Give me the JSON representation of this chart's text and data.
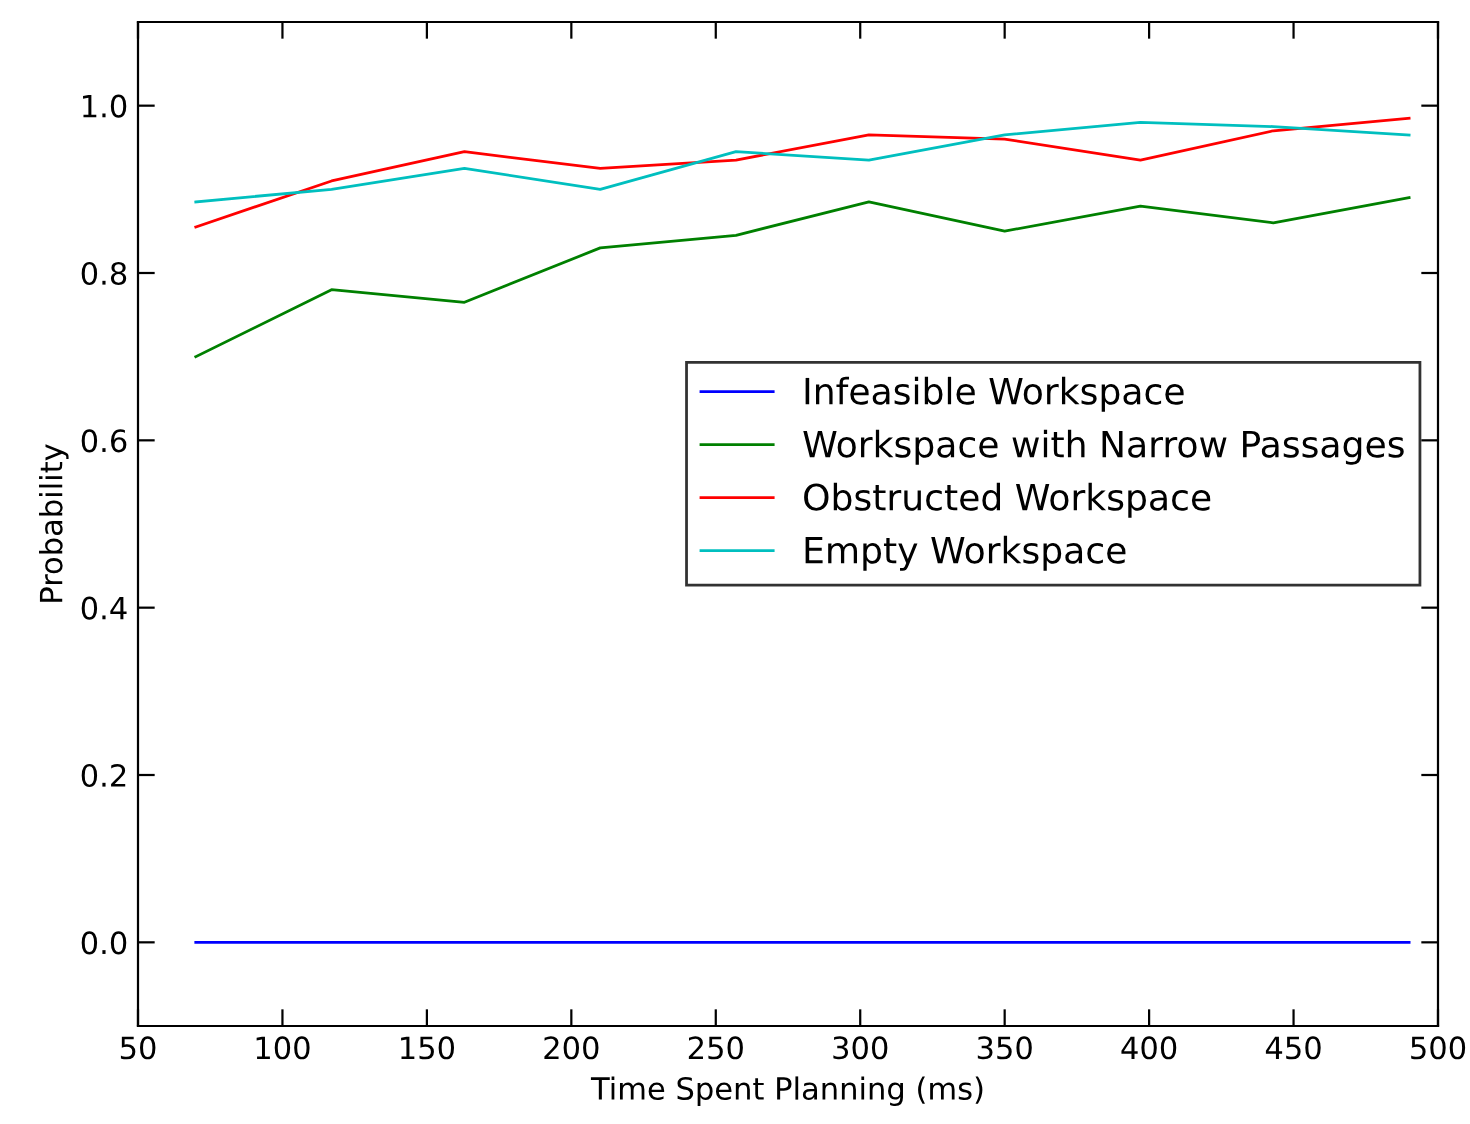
{
  "chart_data": {
    "type": "line",
    "xlabel": "Time Spent Planning (ms)",
    "ylabel": "Probability",
    "x": [
      70,
      117,
      163,
      210,
      257,
      303,
      350,
      397,
      443,
      490
    ],
    "series": [
      {
        "name": "Infeasible Workspace",
        "color": "#0000ff",
        "values": [
          0,
          0,
          0,
          0,
          0,
          0,
          0,
          0,
          0,
          0
        ]
      },
      {
        "name": "Workspace with Narrow Passages",
        "color": "#008000",
        "values": [
          0.7,
          0.78,
          0.765,
          0.83,
          0.845,
          0.885,
          0.85,
          0.88,
          0.86,
          0.89
        ]
      },
      {
        "name": "Obstructed Workspace",
        "color": "#ff0000",
        "values": [
          0.855,
          0.91,
          0.945,
          0.925,
          0.935,
          0.965,
          0.96,
          0.935,
          0.97,
          0.985
        ]
      },
      {
        "name": "Empty Workspace",
        "color": "#00bfbf",
        "values": [
          0.885,
          0.9,
          0.925,
          0.9,
          0.945,
          0.935,
          0.965,
          0.98,
          0.975,
          0.965
        ]
      }
    ],
    "xlim": [
      50,
      500
    ],
    "xticks": [
      50,
      100,
      150,
      200,
      250,
      300,
      350,
      400,
      450,
      500
    ],
    "ylim": [
      -0.1,
      1.1
    ],
    "yticks": [
      {
        "value": 0,
        "label": "0.0"
      },
      {
        "value": 0.2,
        "label": "0.2"
      },
      {
        "value": 0.4,
        "label": "0.4"
      },
      {
        "value": 0.6,
        "label": "0.6"
      },
      {
        "value": 0.8,
        "label": "0.8"
      },
      {
        "value": 1.0,
        "label": "1.0"
      }
    ],
    "grid": false,
    "legend": "center right"
  }
}
